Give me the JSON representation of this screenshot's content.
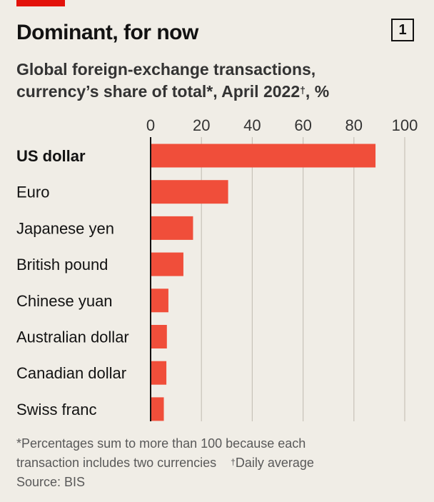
{
  "header": {
    "title": "Dominant, for now",
    "chart_number": "1",
    "subtitle_line1": "Global foreign-exchange transactions,",
    "subtitle_line2_a": "currency’s share of total*, April 2022",
    "subtitle_dagger": "†",
    "subtitle_line2_b": ", %"
  },
  "footnote": {
    "line1": "*Percentages sum to more than 100 because each",
    "line2_a": "transaction includes two currencies",
    "line2_dagger": "†",
    "line2_b": "Daily average",
    "source": "Source: BIS"
  },
  "colors": {
    "background": "#f0ede6",
    "bar": "#f04e3a",
    "brand_red": "#e3120b",
    "gridline": "#c7c2b8",
    "axis": "#121212"
  },
  "chart_data": {
    "type": "bar",
    "orientation": "horizontal",
    "categories": [
      "US dollar",
      "Euro",
      "Japanese yen",
      "British pound",
      "Chinese yuan",
      "Australian dollar",
      "Canadian dollar",
      "Swiss franc"
    ],
    "values": [
      88.5,
      30.5,
      16.7,
      12.9,
      7.0,
      6.4,
      6.2,
      5.2
    ],
    "highlight_category": "US dollar",
    "xlim": [
      0,
      100
    ],
    "xticks": [
      "0",
      "20",
      "40",
      "60",
      "80",
      "100"
    ],
    "xtick_values": [
      0,
      20,
      40,
      60,
      80,
      100
    ],
    "axis_position": "top",
    "grid": true
  }
}
